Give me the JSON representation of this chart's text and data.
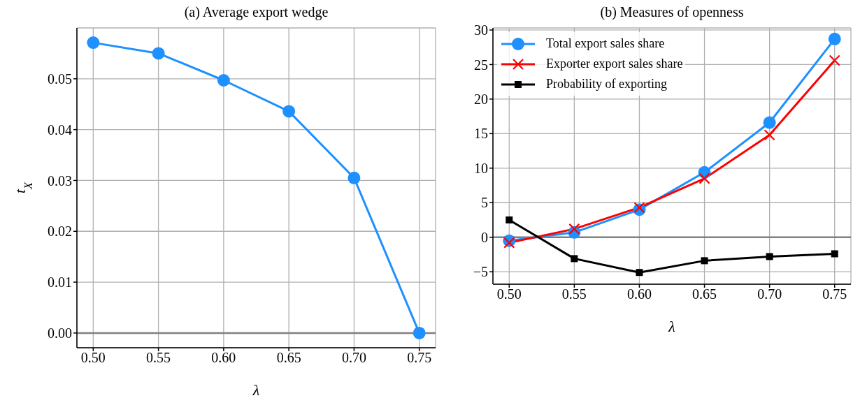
{
  "chart_data": [
    {
      "type": "line",
      "title": "(a) Average export wedge",
      "xlabel": "λ",
      "ylabel": "t$_{X}$",
      "x": [
        0.5,
        0.55,
        0.6,
        0.65,
        0.7,
        0.75
      ],
      "series": [
        {
          "color": "#1e90ff",
          "marker": "circle",
          "values": [
            0.0571,
            0.055,
            0.0497,
            0.0436,
            0.0305,
            0.0
          ]
        }
      ],
      "xlim": [
        0.4875,
        0.7625
      ],
      "ylim": [
        -0.0029,
        0.06
      ],
      "xticks": [
        {
          "value": 0.5,
          "label": "0.50"
        },
        {
          "value": 0.55,
          "label": "0.55"
        },
        {
          "value": 0.6,
          "label": "0.60"
        },
        {
          "value": 0.65,
          "label": "0.65"
        },
        {
          "value": 0.7,
          "label": "0.70"
        },
        {
          "value": 0.75,
          "label": "0.75"
        }
      ],
      "yticks": [
        {
          "value": 0,
          "label": "0.00"
        },
        0.01,
        0.02,
        0.03,
        0.04,
        0.05
      ],
      "grid": true,
      "ref_lines": [
        {
          "axis": "y",
          "value": 0,
          "color": "#808080"
        }
      ]
    },
    {
      "type": "line",
      "title": "(b) Measures of openness",
      "xlabel": "λ",
      "x": [
        0.5,
        0.55,
        0.6,
        0.65,
        0.7,
        0.75
      ],
      "series": [
        {
          "name": "Total export sales share",
          "color": "#1e90ff",
          "marker": "circle",
          "values": [
            -0.5,
            0.7,
            4.0,
            9.4,
            16.6,
            28.7
          ]
        },
        {
          "name": "Exporter export sales share",
          "color": "#ff0000",
          "marker": "cross",
          "values": [
            -0.8,
            1.2,
            4.3,
            8.5,
            14.8,
            25.6
          ]
        },
        {
          "name": "Probability of exporting",
          "color": "#000000",
          "marker": "square",
          "values": [
            2.5,
            -3.1,
            -5.1,
            -3.4,
            -2.8,
            -2.4
          ]
        }
      ],
      "xlim": [
        0.4875,
        0.7625
      ],
      "ylim": [
        -6.8,
        30.3
      ],
      "xticks": [
        {
          "value": 0.5,
          "label": "0.50"
        },
        {
          "value": 0.55,
          "label": "0.55"
        },
        {
          "value": 0.6,
          "label": "0.60"
        },
        {
          "value": 0.65,
          "label": "0.65"
        },
        {
          "value": 0.7,
          "label": "0.70"
        },
        {
          "value": 0.75,
          "label": "0.75"
        }
      ],
      "yticks": [
        {
          "value": -5,
          "label": "−5"
        },
        0,
        5,
        10,
        15,
        20,
        25,
        30
      ],
      "grid": true,
      "legend": "top left",
      "ref_lines": [
        {
          "axis": "y",
          "value": 0,
          "color": "#808080"
        }
      ]
    }
  ]
}
